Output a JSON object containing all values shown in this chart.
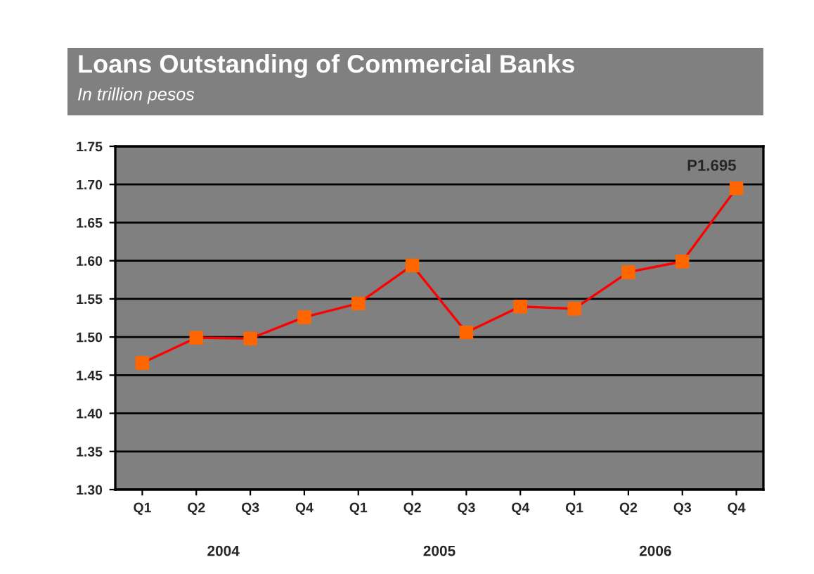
{
  "chart_data": {
    "type": "line",
    "title": "Loans Outstanding of Commercial Banks",
    "subtitle": "In trillion pesos",
    "categories": [
      "Q1",
      "Q2",
      "Q3",
      "Q4",
      "Q1",
      "Q2",
      "Q3",
      "Q4",
      "Q1",
      "Q2",
      "Q3",
      "Q4"
    ],
    "series": [
      {
        "color": "#ff0000",
        "values": [
          1.466,
          1.499,
          1.498,
          1.526,
          1.544,
          1.594,
          1.506,
          1.54,
          1.537,
          1.585,
          1.599,
          1.695
        ],
        "value_labels": [
          null,
          null,
          null,
          null,
          null,
          null,
          null,
          null,
          null,
          null,
          null,
          "P1.695"
        ]
      }
    ],
    "marker": "square",
    "ylim": [
      1.3,
      1.75
    ],
    "yticks": [
      {
        "value": 1.3,
        "label": "1.30"
      },
      {
        "value": 1.35,
        "label": "1.35"
      },
      {
        "value": 1.4,
        "label": "1.40"
      },
      {
        "value": 1.45,
        "label": "1.45"
      },
      {
        "value": 1.5,
        "label": "1.50"
      },
      {
        "value": 1.55,
        "label": "1.55"
      },
      {
        "value": 1.6,
        "label": "1.60"
      },
      {
        "value": 1.65,
        "label": "1.65"
      },
      {
        "value": 1.7,
        "label": "1.70"
      },
      {
        "value": 1.75,
        "label": "1.75"
      }
    ],
    "grid": "y",
    "legend": false,
    "annotations": [
      "2004",
      "2005",
      "2006"
    ]
  }
}
